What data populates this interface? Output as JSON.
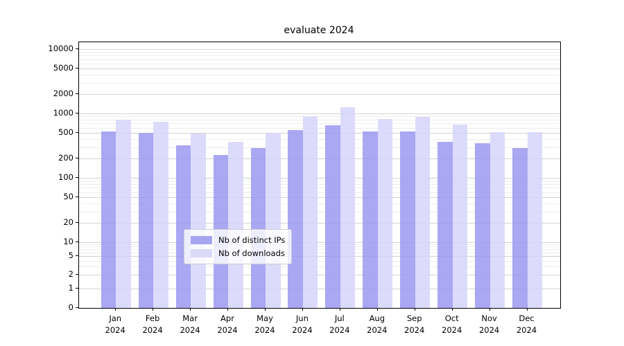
{
  "chart_data": {
    "type": "bar",
    "title": "evaluate 2024",
    "categories": [
      "Jan",
      "Feb",
      "Mar",
      "Apr",
      "May",
      "Jun",
      "Jul",
      "Aug",
      "Sep",
      "Oct",
      "Nov",
      "Dec"
    ],
    "category_year": "2024",
    "series": [
      {
        "name": "Nb of distinct IPs",
        "color": "#a7a5f2",
        "values": [
          520,
          505,
          320,
          225,
          290,
          550,
          660,
          520,
          525,
          360,
          345,
          290
        ]
      },
      {
        "name": "Nb of downloads",
        "color": "#dadaf8",
        "values": [
          800,
          740,
          485,
          360,
          500,
          900,
          1240,
          830,
          890,
          680,
          510,
          510
        ]
      }
    ],
    "yscale": "symlog",
    "ylim": [
      0,
      12800
    ],
    "yticks": [
      10000,
      5000,
      2000,
      1000,
      500,
      200,
      100,
      50,
      20,
      10,
      5,
      2,
      1,
      0
    ],
    "grid": true,
    "legend_position": "lower-center"
  },
  "colors": {
    "grid_major": "#d2d2d2",
    "grid_minor": "#ededed",
    "axis": "#000000",
    "background": "#ffffff",
    "legend_border": "#cccccc"
  }
}
